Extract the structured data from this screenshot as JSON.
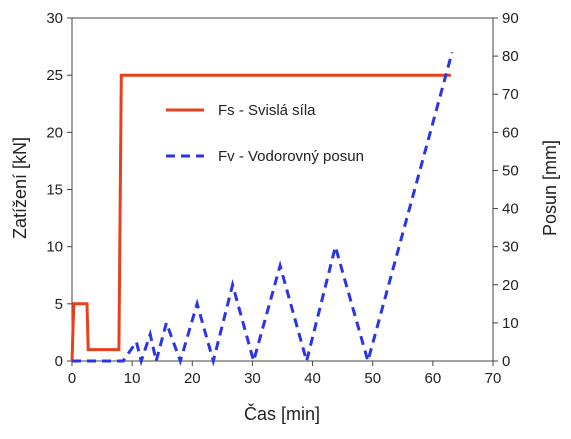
{
  "chart_data": {
    "type": "line",
    "xlabel": "Čas [min]",
    "ylabel_left": "Zatížení [kN]",
    "ylabel_right": "Posun [mm]",
    "xlim": [
      0,
      70
    ],
    "ylim_left": [
      0,
      30
    ],
    "ylim_right": [
      0,
      90
    ],
    "x_ticks": [
      "0",
      "10",
      "20",
      "30",
      "40",
      "50",
      "60",
      "70"
    ],
    "y_left_ticks": [
      "0",
      "5",
      "10",
      "15",
      "20",
      "25",
      "30"
    ],
    "y_right_ticks": [
      "0",
      "10",
      "20",
      "30",
      "40",
      "50",
      "60",
      "70",
      "80",
      "90"
    ],
    "grid": false,
    "legend_position": "upper-center",
    "series": [
      {
        "name": "Fs - Svislá síla",
        "axis": "left",
        "style": "solid",
        "color": "#e8401c",
        "x": [
          0,
          0.3,
          2.5,
          2.7,
          7.8,
          8.2,
          63
        ],
        "y": [
          0,
          5,
          5,
          1,
          1,
          25,
          25
        ]
      },
      {
        "name": "Fv - Vodorovný posun",
        "axis": "right",
        "style": "dashed",
        "color": "#2a35e8",
        "x": [
          0,
          8.5,
          10.7,
          11.5,
          13,
          14,
          15.7,
          18,
          20.8,
          23.5,
          26.7,
          30.2,
          34.6,
          39,
          43.8,
          49.2,
          63.2
        ],
        "y": [
          0,
          0,
          5,
          0,
          7,
          0,
          10,
          0,
          15,
          0,
          20,
          0,
          25,
          0,
          30,
          0,
          81
        ]
      }
    ]
  }
}
